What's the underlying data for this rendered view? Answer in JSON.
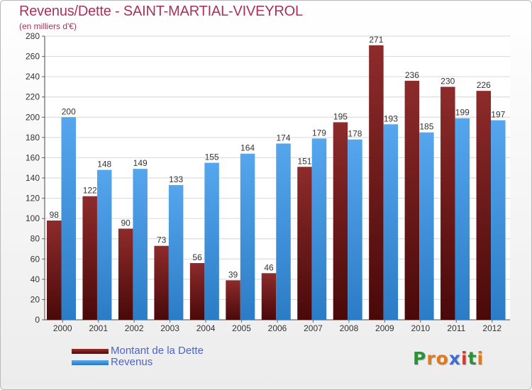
{
  "chart_data": {
    "type": "bar",
    "title": "Revenus/Dette - SAINT-MARTIAL-VIVEYROL",
    "subtitle": "(en milliers d'€)",
    "categories": [
      "2000",
      "2001",
      "2002",
      "2003",
      "2004",
      "2005",
      "2006",
      "2007",
      "2008",
      "2009",
      "2010",
      "2011",
      "2012"
    ],
    "series": [
      {
        "name": "Montant de la Dette",
        "color": "#7a1f1f",
        "values": [
          98,
          122,
          90,
          73,
          56,
          39,
          46,
          151,
          195,
          271,
          236,
          230,
          226
        ]
      },
      {
        "name": "Revenus",
        "color": "#3d8fd9",
        "values": [
          200,
          148,
          149,
          133,
          155,
          164,
          174,
          179,
          178,
          193,
          185,
          199,
          197
        ]
      }
    ],
    "ylim": [
      0,
      280
    ],
    "yticks": [
      0,
      20,
      40,
      60,
      80,
      100,
      120,
      140,
      160,
      180,
      200,
      220,
      240,
      260,
      280
    ],
    "grid": true,
    "legend_placement": "bottom-left"
  },
  "logo": {
    "text": "Proxiti",
    "letters": [
      "P",
      "r",
      "o",
      "x",
      "i",
      "t",
      "i"
    ],
    "colors": [
      "#2f8f3a",
      "#e07a1a",
      "#e07a1a",
      "#3a6fd0",
      "#d33a2a",
      "#2f8f3a",
      "#e07a1a"
    ]
  }
}
